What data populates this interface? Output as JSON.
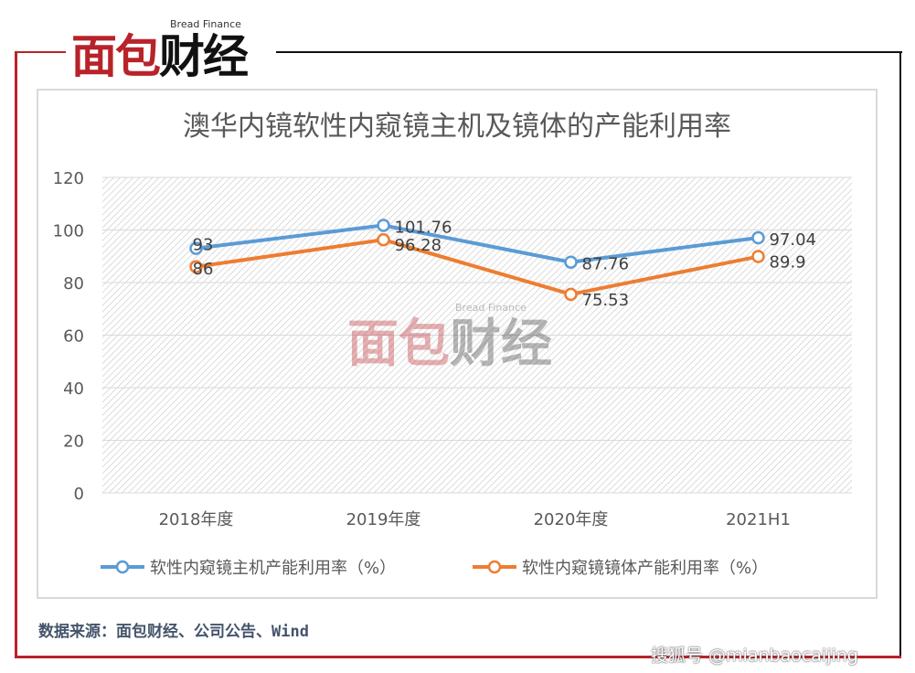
{
  "logo": {
    "en": "Bread Finance",
    "cn_red": "面包",
    "cn_black": "财经"
  },
  "source": "数据来源：面包财经、公司公告、Wind",
  "watermark": "搜狐号 @mianbaocaijing",
  "chart_data": {
    "type": "line",
    "title": "澳华内镜软性内窥镜主机及镜体的产能利用率",
    "categories": [
      "2018年度",
      "2019年度",
      "2020年度",
      "2021H1"
    ],
    "ylim": [
      0,
      120
    ],
    "yticks": [
      0,
      20,
      40,
      60,
      80,
      100,
      120
    ],
    "legend_position": "bottom",
    "series": [
      {
        "name": "软性内窥镜主机产能利用率（%）",
        "values": [
          93,
          101.76,
          87.76,
          97.04
        ],
        "labels": [
          "93",
          "101.76",
          "87.76",
          "97.04"
        ],
        "color": "#5b9bd5"
      },
      {
        "name": "软性内窥镜镜体产能利用率（%）",
        "values": [
          86,
          96.28,
          75.53,
          89.9
        ],
        "labels": [
          "86",
          "96.28",
          "75.53",
          "89.9"
        ],
        "color": "#ed7d31"
      }
    ]
  }
}
